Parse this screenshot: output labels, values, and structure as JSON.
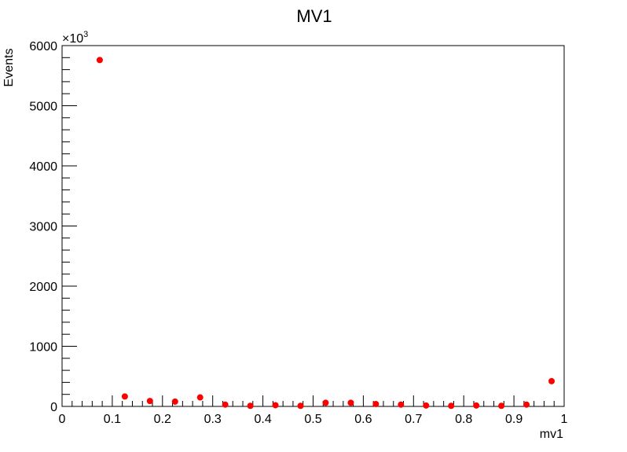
{
  "chart_data": {
    "type": "scatter",
    "title": "MV1",
    "xlabel": "mv1",
    "ylabel": "Events",
    "y_multiplier_label": "×10",
    "y_multiplier_exponent": "3",
    "xlim": [
      0,
      1
    ],
    "ylim": [
      0,
      6000
    ],
    "x_ticks": [
      0,
      0.1,
      0.2,
      0.3,
      0.4,
      0.5,
      0.6,
      0.7,
      0.8,
      0.9,
      1
    ],
    "x_tick_labels": [
      "0",
      "0.1",
      "0.2",
      "0.3",
      "0.4",
      "0.5",
      "0.6",
      "0.7",
      "0.8",
      "0.9",
      "1"
    ],
    "y_ticks": [
      0,
      1000,
      2000,
      3000,
      4000,
      5000,
      6000
    ],
    "y_tick_labels": [
      "0",
      "1000",
      "2000",
      "3000",
      "4000",
      "5000",
      "6000"
    ],
    "grid": false,
    "marker_color": "#ff0000",
    "series": [
      {
        "x": [
          0.075,
          0.125,
          0.175,
          0.225,
          0.275,
          0.325,
          0.375,
          0.425,
          0.475,
          0.525,
          0.575,
          0.625,
          0.675,
          0.725,
          0.775,
          0.825,
          0.875,
          0.925,
          0.975
        ],
        "values": [
          5760,
          165,
          90,
          80,
          150,
          30,
          10,
          20,
          10,
          60,
          60,
          40,
          30,
          15,
          10,
          15,
          10,
          30,
          420
        ]
      }
    ]
  }
}
